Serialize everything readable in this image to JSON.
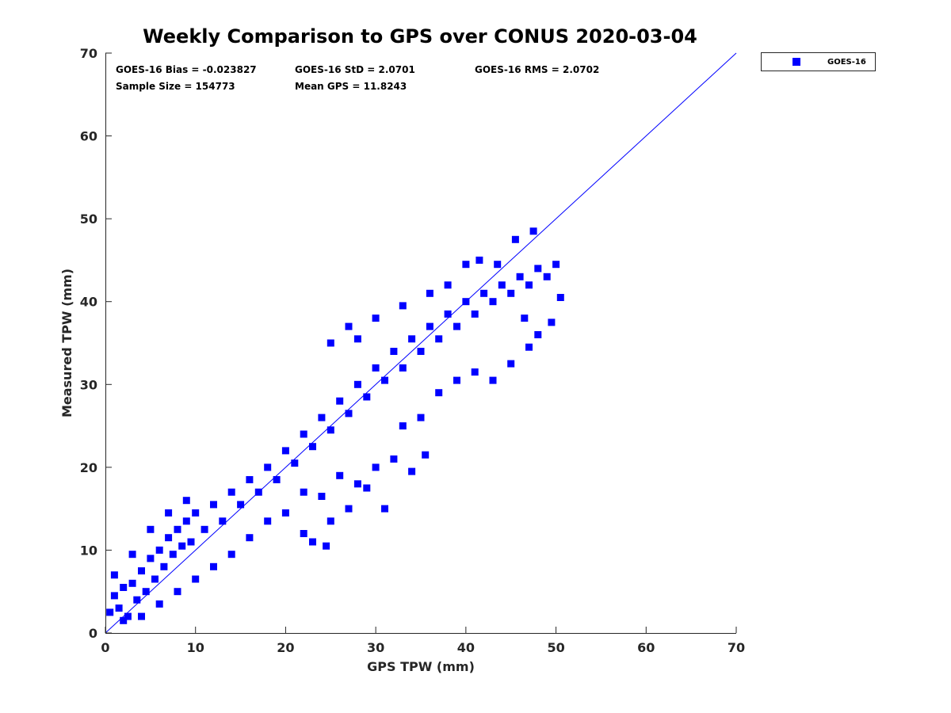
{
  "chart_data": {
    "type": "scatter",
    "title": "Weekly Comparison to GPS over CONUS 2020-03-04",
    "xlabel": "GPS TPW (mm)",
    "ylabel": "Measured TPW (mm)",
    "xlim": [
      0,
      70
    ],
    "ylim": [
      0,
      70
    ],
    "x_ticks": [
      "0",
      "10",
      "20",
      "30",
      "40",
      "50",
      "60",
      "70"
    ],
    "y_ticks": [
      "0",
      "10",
      "20",
      "30",
      "40",
      "50",
      "60",
      "70"
    ],
    "grid": false,
    "legend_position": "outside top-right",
    "stats": [
      "GOES-16 Bias = -0.023827",
      "GOES-16 StD = 2.0701",
      "GOES-16 RMS = 2.0702",
      "Sample Size = 154773",
      "Mean GPS = 11.8243"
    ],
    "reference_line": {
      "x": [
        0,
        70
      ],
      "y": [
        0,
        70
      ],
      "color": "#0000ff"
    },
    "series": [
      {
        "name": "GOES-16",
        "color": "#0000ff",
        "marker": "square",
        "points": [
          [
            0.5,
            2.5
          ],
          [
            1.0,
            4.5
          ],
          [
            1.5,
            3.0
          ],
          [
            2.0,
            5.5
          ],
          [
            2.5,
            2.0
          ],
          [
            3.0,
            6.0
          ],
          [
            3.5,
            4.0
          ],
          [
            4.0,
            7.5
          ],
          [
            4.5,
            5.0
          ],
          [
            5.0,
            9.0
          ],
          [
            5.5,
            6.5
          ],
          [
            6.0,
            10.0
          ],
          [
            6.5,
            8.0
          ],
          [
            7.0,
            11.5
          ],
          [
            7.5,
            9.5
          ],
          [
            8.0,
            12.5
          ],
          [
            8.5,
            10.5
          ],
          [
            9.0,
            13.5
          ],
          [
            9.5,
            11.0
          ],
          [
            10.0,
            14.5
          ],
          [
            11.0,
            12.5
          ],
          [
            12.0,
            15.5
          ],
          [
            13.0,
            13.5
          ],
          [
            14.0,
            17.0
          ],
          [
            15.0,
            15.5
          ],
          [
            16.0,
            18.5
          ],
          [
            17.0,
            17.0
          ],
          [
            18.0,
            20.0
          ],
          [
            19.0,
            18.5
          ],
          [
            20.0,
            22.0
          ],
          [
            21.0,
            20.5
          ],
          [
            22.0,
            24.0
          ],
          [
            23.0,
            22.5
          ],
          [
            24.0,
            26.0
          ],
          [
            25.0,
            24.5
          ],
          [
            26.0,
            28.0
          ],
          [
            27.0,
            26.5
          ],
          [
            28.0,
            30.0
          ],
          [
            29.0,
            28.5
          ],
          [
            30.0,
            32.0
          ],
          [
            31.0,
            30.5
          ],
          [
            32.0,
            34.0
          ],
          [
            33.0,
            32.0
          ],
          [
            34.0,
            35.5
          ],
          [
            35.0,
            34.0
          ],
          [
            36.0,
            37.0
          ],
          [
            37.0,
            35.5
          ],
          [
            38.0,
            38.5
          ],
          [
            39.0,
            37.0
          ],
          [
            40.0,
            40.0
          ],
          [
            41.0,
            38.5
          ],
          [
            42.0,
            41.0
          ],
          [
            43.0,
            40.0
          ],
          [
            44.0,
            42.0
          ],
          [
            45.0,
            41.0
          ],
          [
            46.0,
            43.0
          ],
          [
            47.0,
            42.0
          ],
          [
            48.0,
            44.0
          ],
          [
            49.0,
            43.0
          ],
          [
            50.0,
            44.5
          ],
          [
            45.5,
            47.5
          ],
          [
            47.5,
            48.5
          ],
          [
            25.0,
            35.0
          ],
          [
            27.0,
            37.0
          ],
          [
            28.0,
            35.5
          ],
          [
            30.0,
            38.0
          ],
          [
            33.0,
            39.5
          ],
          [
            36.0,
            41.0
          ],
          [
            38.0,
            42.0
          ],
          [
            41.5,
            45.0
          ],
          [
            43.5,
            44.5
          ],
          [
            40.0,
            44.5
          ],
          [
            22.0,
            17.0
          ],
          [
            24.0,
            16.5
          ],
          [
            26.0,
            19.0
          ],
          [
            28.0,
            18.0
          ],
          [
            30.0,
            20.0
          ],
          [
            32.0,
            21.0
          ],
          [
            34.0,
            19.5
          ],
          [
            35.5,
            21.5
          ],
          [
            27.0,
            15.0
          ],
          [
            25.0,
            13.5
          ],
          [
            22.0,
            12.0
          ],
          [
            20.0,
            14.5
          ],
          [
            23.0,
            11.0
          ],
          [
            24.5,
            10.5
          ],
          [
            29.0,
            17.5
          ],
          [
            31.0,
            15.0
          ],
          [
            33.0,
            25.0
          ],
          [
            35.0,
            26.0
          ],
          [
            37.0,
            29.0
          ],
          [
            39.0,
            30.5
          ],
          [
            41.0,
            31.5
          ],
          [
            43.0,
            30.5
          ],
          [
            45.0,
            32.5
          ],
          [
            47.0,
            34.5
          ],
          [
            48.0,
            36.0
          ],
          [
            49.5,
            37.5
          ],
          [
            50.5,
            40.5
          ],
          [
            46.5,
            38.0
          ],
          [
            3.0,
            9.5
          ],
          [
            5.0,
            12.5
          ],
          [
            7.0,
            14.5
          ],
          [
            9.0,
            16.0
          ],
          [
            1.0,
            7.0
          ],
          [
            2.0,
            1.5
          ],
          [
            4.0,
            2.0
          ],
          [
            6.0,
            3.5
          ],
          [
            8.0,
            5.0
          ],
          [
            10.0,
            6.5
          ],
          [
            12.0,
            8.0
          ],
          [
            14.0,
            9.5
          ],
          [
            16.0,
            11.5
          ],
          [
            18.0,
            13.5
          ]
        ]
      }
    ]
  }
}
